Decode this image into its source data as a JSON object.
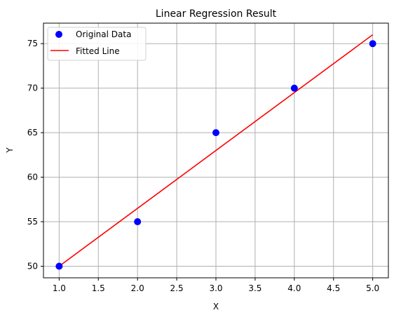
{
  "chart_data": {
    "type": "scatter",
    "title": "Linear Regression Result",
    "xlabel": "X",
    "ylabel": "Y",
    "xlim": [
      0.8,
      5.2
    ],
    "ylim": [
      48.7,
      77.3
    ],
    "xticks": [
      "1.0",
      "1.5",
      "2.0",
      "2.5",
      "3.0",
      "3.5",
      "4.0",
      "4.5",
      "5.0"
    ],
    "yticks": [
      "50",
      "55",
      "60",
      "65",
      "70",
      "75"
    ],
    "xtick_values": [
      1.0,
      1.5,
      2.0,
      2.5,
      3.0,
      3.5,
      4.0,
      4.5,
      5.0
    ],
    "ytick_values": [
      50,
      55,
      60,
      65,
      70,
      75
    ],
    "grid": true,
    "legend_position": "top-left",
    "series": [
      {
        "name": "Original Data",
        "kind": "scatter",
        "color": "#0000ff",
        "points": [
          {
            "x": 1,
            "y": 50
          },
          {
            "x": 2,
            "y": 55
          },
          {
            "x": 3,
            "y": 65
          },
          {
            "x": 4,
            "y": 70
          },
          {
            "x": 5,
            "y": 75
          }
        ]
      },
      {
        "name": "Fitted Line",
        "kind": "line",
        "color": "#ff0000",
        "points": [
          {
            "x": 1,
            "y": 50
          },
          {
            "x": 5,
            "y": 76
          }
        ]
      }
    ]
  }
}
